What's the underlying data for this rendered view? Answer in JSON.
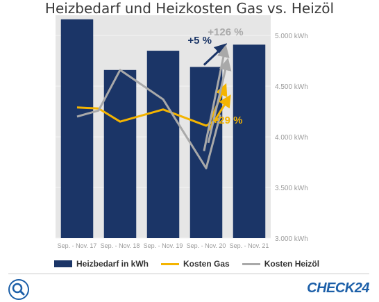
{
  "chart_data": {
    "type": "bar",
    "title": "Heizbedarf und Heizkosten Gas vs. Heizöl",
    "categories": [
      "Sep. - Nov. 17",
      "Sep. - Nov. 18",
      "Sep. - Nov. 19",
      "Sep. - Nov. 20",
      "Sep. - Nov. 21"
    ],
    "series": [
      {
        "name": "Heizbedarf in kWh",
        "kind": "bar",
        "color": "#1b3567",
        "values": [
          5160,
          4660,
          4850,
          4690,
          4910
        ]
      }
    ],
    "lines": [
      {
        "name": "Kosten Gas",
        "color": "#f4b400",
        "points": [
          [
            0,
            4290
          ],
          [
            0.5,
            4280
          ],
          [
            1,
            4150
          ],
          [
            2,
            4270
          ],
          [
            3,
            4110
          ],
          [
            3.33,
            4190
          ]
        ]
      },
      {
        "name": "Kosten Heizöl",
        "color": "#a9a9a9",
        "points": [
          [
            0,
            4200
          ],
          [
            0.5,
            4260
          ],
          [
            1,
            4660
          ],
          [
            2,
            4370
          ],
          [
            3,
            3690
          ],
          [
            3.33,
            4220
          ]
        ]
      }
    ],
    "trend_lines": [
      {
        "color": "#1b3567",
        "points": [
          [
            2.95,
            4710
          ],
          [
            3.45,
            4910
          ]
        ]
      },
      {
        "color": "#f4b400",
        "points": [
          [
            3.05,
            4110
          ],
          [
            3.45,
            4510
          ]
        ]
      },
      {
        "color": "#f4b400",
        "points": [
          [
            3.05,
            4060
          ],
          [
            3.55,
            4400
          ]
        ]
      },
      {
        "color": "#a9a9a9",
        "points": [
          [
            2.95,
            3860
          ],
          [
            3.45,
            4890
          ]
        ]
      },
      {
        "color": "#a9a9a9",
        "points": [
          [
            3.05,
            3940
          ],
          [
            3.5,
            4760
          ]
        ]
      }
    ],
    "annotations": [
      {
        "text": "+5 %",
        "x": 2.85,
        "y": 4920,
        "color": "#1b3567"
      },
      {
        "text": "+126 %",
        "x": 3.45,
        "y": 5000,
        "color": "#a9a9a9"
      },
      {
        "text": "+29 %",
        "x": 3.5,
        "y": 4130,
        "color": "#f4b400"
      }
    ],
    "ylim": [
      3000,
      5200
    ],
    "yticks": [
      3000,
      3500,
      4000,
      4500,
      5000
    ],
    "ytick_labels": [
      "3.000 kWh",
      "3.500 kWh",
      "4.000 kWh",
      "4.500 kWh",
      "5.000 kWh"
    ],
    "legend": "bottom"
  },
  "legend": {
    "bar_label": "Heizbedarf in kWh",
    "gas_label": "Kosten Gas",
    "oil_label": "Kosten Heizöl"
  },
  "footer": {
    "logo_text": "CHECK24",
    "search_icon": "search-icon"
  }
}
